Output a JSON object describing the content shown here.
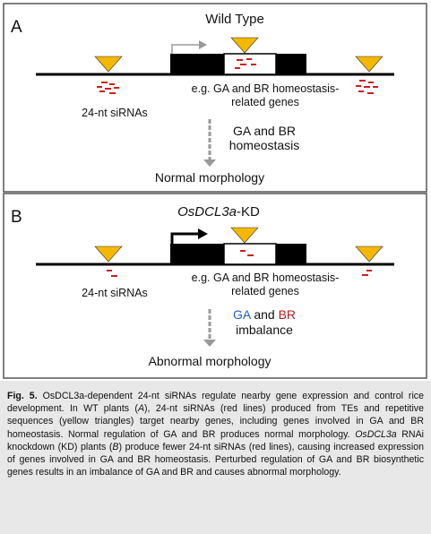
{
  "panels": [
    {
      "letter": "A",
      "title": "Wild Type",
      "gene_label_line1": "e.g. GA and BR homeostasis-",
      "gene_label_line2": "related genes",
      "sirna_label": "24-nt siRNAs",
      "effect_line1_a": "GA",
      "effect_line1_mid": " and ",
      "effect_line1_b": "BR",
      "effect_line2": "homeostasis",
      "outcome": "Normal morphology"
    },
    {
      "letter": "B",
      "title_italic": "OsDCL3a",
      "title_rest": "-KD",
      "gene_label_line1": "e.g. GA and BR homeostasis-",
      "gene_label_line2": "related genes",
      "sirna_label": "24-nt siRNAs",
      "effect_line1_a": "GA",
      "effect_line1_mid": " and ",
      "effect_line1_b": "BR",
      "effect_line2": "imbalance",
      "outcome": "Abnormal morphology"
    }
  ],
  "colors": {
    "sirna_red": "#cc1f1f",
    "triangle_fill": "#f5b800",
    "ga_blue": "#1f5fc8",
    "br_red": "#b41e1e",
    "arrow_gray": "#999999",
    "panel_border": "#555555",
    "caption_bg": "#e8e8e8"
  },
  "caption": {
    "label": "Fig. 5.",
    "s1": "OsDCL3a-dependent 24-nt siRNAs regulate nearby gene expression and control rice development. In WT plants (",
    "s1_it": "A",
    "s2": "), 24-nt siRNAs (red lines) produced from TEs and repetitive sequences (yellow triangles) target nearby genes, including genes involved in GA and BR homeostasis. Normal regulation of GA and BR produces normal morphology. ",
    "s2_it": "OsDCL3a",
    "s3": " RNAi knockdown (KD) plants (",
    "s3_it": "B",
    "s4": ") produce fewer 24-nt siRNAs (red lines), causing increased expression of genes involved in GA and BR homeostasis. Perturbed regulation of GA and BR biosynthetic genes results in an imbalance of GA and BR and causes abnormal morphology."
  }
}
